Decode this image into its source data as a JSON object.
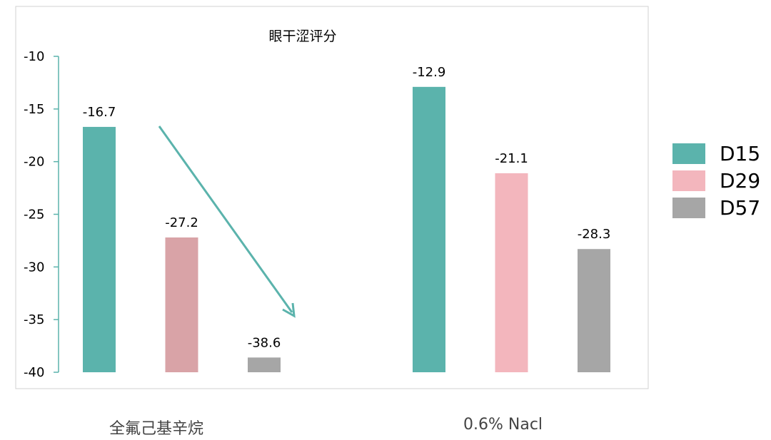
{
  "chart_data": {
    "type": "bar",
    "title": "眼干涩评分",
    "ylim": [
      -40,
      -10
    ],
    "yticks": [
      -10,
      -15,
      -20,
      -25,
      -30,
      -35,
      -40
    ],
    "groups": [
      "全氟己基辛烷",
      "0.6% Nacl"
    ],
    "series": [
      {
        "name": "D15",
        "color": "#5bb3ac",
        "values": [
          -16.7,
          -12.9
        ],
        "labels": [
          "-16.7",
          "-12.9"
        ]
      },
      {
        "name": "D29",
        "colors": [
          "#d9a3a7",
          "#f3b6bd"
        ],
        "values": [
          -27.2,
          -21.1
        ],
        "labels": [
          "-27.2",
          "-21.1"
        ]
      },
      {
        "name": "D57",
        "color": "#a6a6a6",
        "values": [
          -38.6,
          -28.3
        ],
        "labels": [
          "-38.6",
          "-28.3"
        ]
      }
    ],
    "legend_position": "right",
    "annotation": "downward-trend-arrow"
  },
  "legend": [
    {
      "label": "D15",
      "color": "#5bb3ac"
    },
    {
      "label": "D29",
      "color": "#f3b6bd"
    },
    {
      "label": "D57",
      "color": "#a6a6a6"
    }
  ],
  "colors": {
    "axis": "#5bb3ac",
    "arrow": "#5bb3ac",
    "frame": "#d0d0d0"
  }
}
